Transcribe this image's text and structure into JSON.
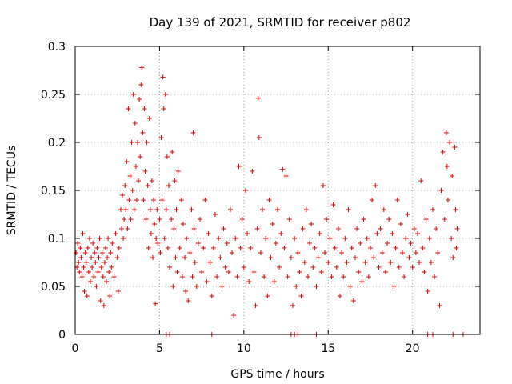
{
  "chart_data": {
    "type": "scatter",
    "title": "Day 139 of 2021, SRMTID for receiver p802",
    "xlabel": "GPS time / hours",
    "ylabel": "SRMTID / TECUs",
    "xlim": [
      0,
      24
    ],
    "ylim": [
      0,
      0.3
    ],
    "x_ticks": [
      0,
      5,
      10,
      15,
      20
    ],
    "x_tick_labels": [
      "0",
      "5",
      "10",
      "15",
      "20"
    ],
    "y_ticks": [
      0,
      0.05,
      0.1,
      0.15,
      0.2,
      0.25,
      0.3
    ],
    "y_tick_labels": [
      "0",
      "0.05",
      "0.1",
      "0.15",
      "0.2",
      "0.25",
      "0.3"
    ],
    "grid": true,
    "marker": "+",
    "color": "#e00000",
    "series": [
      {
        "name": "SRMTID",
        "points": [
          [
            0.05,
            0.085
          ],
          [
            0.1,
            0.07
          ],
          [
            0.15,
            0.095
          ],
          [
            0.2,
            0.075
          ],
          [
            0.25,
            0.065
          ],
          [
            0.3,
            0.09
          ],
          [
            0.35,
            0.08
          ],
          [
            0.4,
            0.06
          ],
          [
            0.45,
            0.105
          ],
          [
            0.5,
            0.07
          ],
          [
            0.55,
            0.045
          ],
          [
            0.6,
            0.085
          ],
          [
            0.65,
            0.075
          ],
          [
            0.7,
            0.04
          ],
          [
            0.75,
            0.09
          ],
          [
            0.8,
            0.065
          ],
          [
            0.85,
            0.1
          ],
          [
            0.9,
            0.055
          ],
          [
            0.95,
            0.08
          ],
          [
            1.0,
            0.07
          ],
          [
            1.05,
            0.095
          ],
          [
            1.1,
            0.06
          ],
          [
            1.15,
            0.085
          ],
          [
            1.2,
            0.075
          ],
          [
            1.25,
            0.05
          ],
          [
            1.3,
            0.09
          ],
          [
            1.35,
            0.065
          ],
          [
            1.4,
            0.08
          ],
          [
            1.45,
            0.1
          ],
          [
            1.5,
            0.035
          ],
          [
            1.55,
            0.07
          ],
          [
            1.6,
            0.085
          ],
          [
            1.65,
            0.06
          ],
          [
            1.7,
            0.03
          ],
          [
            1.75,
            0.075
          ],
          [
            1.8,
            0.09
          ],
          [
            1.85,
            0.055
          ],
          [
            1.9,
            0.08
          ],
          [
            1.95,
            0.1
          ],
          [
            2.0,
            0.065
          ],
          [
            2.05,
            0.04
          ],
          [
            2.1,
            0.085
          ],
          [
            2.15,
            0.07
          ],
          [
            2.2,
            0.095
          ],
          [
            2.3,
            0.06
          ],
          [
            2.4,
            0.105
          ],
          [
            2.5,
            0.08
          ],
          [
            2.55,
            0.045
          ],
          [
            2.6,
            0.09
          ],
          [
            2.7,
            0.13
          ],
          [
            2.75,
            0.11
          ],
          [
            2.8,
            0.145
          ],
          [
            2.85,
            0.1
          ],
          [
            2.9,
            0.12
          ],
          [
            2.95,
            0.155
          ],
          [
            3.0,
            0.13
          ],
          [
            3.05,
            0.18
          ],
          [
            3.1,
            0.11
          ],
          [
            3.15,
            0.235
          ],
          [
            3.2,
            0.14
          ],
          [
            3.25,
            0.165
          ],
          [
            3.3,
            0.12
          ],
          [
            3.35,
            0.2
          ],
          [
            3.4,
            0.15
          ],
          [
            3.45,
            0.25
          ],
          [
            3.5,
            0.13
          ],
          [
            3.55,
            0.22
          ],
          [
            3.6,
            0.175
          ],
          [
            3.65,
            0.14
          ],
          [
            3.7,
            0.2
          ],
          [
            3.75,
            0.16
          ],
          [
            3.8,
            0.245
          ],
          [
            3.85,
            0.185
          ],
          [
            3.9,
            0.26
          ],
          [
            3.95,
            0.278
          ],
          [
            4.0,
            0.21
          ],
          [
            4.05,
            0.14
          ],
          [
            4.1,
            0.235
          ],
          [
            4.15,
            0.17
          ],
          [
            4.2,
            0.12
          ],
          [
            4.25,
            0.2
          ],
          [
            4.3,
            0.155
          ],
          [
            4.35,
            0.09
          ],
          [
            4.4,
            0.225
          ],
          [
            4.45,
            0.13
          ],
          [
            4.5,
            0.105
          ],
          [
            4.55,
            0.16
          ],
          [
            4.6,
            0.08
          ],
          [
            4.65,
            0.14
          ],
          [
            4.7,
            0.115
          ],
          [
            4.75,
            0.032
          ],
          [
            4.8,
            0.1
          ],
          [
            4.85,
            0.13
          ],
          [
            4.9,
            0.095
          ],
          [
            5.0,
            0.12
          ],
          [
            5.05,
            0.085
          ],
          [
            5.1,
            0.205
          ],
          [
            5.15,
            0.14
          ],
          [
            5.2,
            0.268
          ],
          [
            5.25,
            0.235
          ],
          [
            5.3,
            0.1
          ],
          [
            5.35,
            0.25
          ],
          [
            5.4,
            0.13
          ],
          [
            5.45,
            0.185
          ],
          [
            5.5,
            0.09
          ],
          [
            5.55,
            0.155
          ],
          [
            5.6,
            0.07
          ],
          [
            5.7,
            0.12
          ],
          [
            5.75,
            0.19
          ],
          [
            5.8,
            0.05
          ],
          [
            5.85,
            0.11
          ],
          [
            5.9,
            0.16
          ],
          [
            5.95,
            0.08
          ],
          [
            6.0,
            0.13
          ],
          [
            6.05,
            0.065
          ],
          [
            6.1,
            0.17
          ],
          [
            6.2,
            0.09
          ],
          [
            6.3,
            0.14
          ],
          [
            6.35,
            0.06
          ],
          [
            6.4,
            0.115
          ],
          [
            6.5,
            0.08
          ],
          [
            6.55,
            0.045
          ],
          [
            6.6,
            0.1
          ],
          [
            6.7,
            0.035
          ],
          [
            6.8,
            0.085
          ],
          [
            6.9,
            0.13
          ],
          [
            6.95,
            0.06
          ],
          [
            7.0,
            0.21
          ],
          [
            7.05,
            0.11
          ],
          [
            7.1,
            0.075
          ],
          [
            7.2,
            0.05
          ],
          [
            7.3,
            0.095
          ],
          [
            7.4,
            0.12
          ],
          [
            7.5,
            0.065
          ],
          [
            7.6,
            0.09
          ],
          [
            7.7,
            0.14
          ],
          [
            7.8,
            0.055
          ],
          [
            7.9,
            0.105
          ],
          [
            8.0,
            0.075
          ],
          [
            8.1,
            0.04
          ],
          [
            8.2,
            0.09
          ],
          [
            8.3,
            0.125
          ],
          [
            8.4,
            0.06
          ],
          [
            8.5,
            0.1
          ],
          [
            8.6,
            0.08
          ],
          [
            8.7,
            0.05
          ],
          [
            8.8,
            0.11
          ],
          [
            8.9,
            0.07
          ],
          [
            9.0,
            0.095
          ],
          [
            9.1,
            0.065
          ],
          [
            9.2,
            0.13
          ],
          [
            9.3,
            0.085
          ],
          [
            9.4,
            0.02
          ],
          [
            9.5,
            0.1
          ],
          [
            9.6,
            0.06
          ],
          [
            9.7,
            0.175
          ],
          [
            9.8,
            0.09
          ],
          [
            9.9,
            0.12
          ],
          [
            10.0,
            0.07
          ],
          [
            10.1,
            0.15
          ],
          [
            10.2,
            0.105
          ],
          [
            10.3,
            0.055
          ],
          [
            10.4,
            0.09
          ],
          [
            10.5,
            0.17
          ],
          [
            10.6,
            0.065
          ],
          [
            10.7,
            0.03
          ],
          [
            10.8,
            0.11
          ],
          [
            10.85,
            0.246
          ],
          [
            10.9,
            0.205
          ],
          [
            11.0,
            0.085
          ],
          [
            11.1,
            0.13
          ],
          [
            11.2,
            0.06
          ],
          [
            11.3,
            0.1
          ],
          [
            11.4,
            0.04
          ],
          [
            11.5,
            0.14
          ],
          [
            11.6,
            0.08
          ],
          [
            11.7,
            0.115
          ],
          [
            11.8,
            0.055
          ],
          [
            11.9,
            0.095
          ],
          [
            12.0,
            0.13
          ],
          [
            12.1,
            0.07
          ],
          [
            12.2,
            0.105
          ],
          [
            12.3,
            0.172
          ],
          [
            12.4,
            0.09
          ],
          [
            12.5,
            0.165
          ],
          [
            12.6,
            0.06
          ],
          [
            12.7,
            0.12
          ],
          [
            12.8,
            0.08
          ],
          [
            12.9,
            0.03
          ],
          [
            13.0,
            0.1
          ],
          [
            13.1,
            0.05
          ],
          [
            13.2,
            0.085
          ],
          [
            13.3,
            0.065
          ],
          [
            13.4,
            0.04
          ],
          [
            13.5,
            0.11
          ],
          [
            13.6,
            0.075
          ],
          [
            13.7,
            0.13
          ],
          [
            13.8,
            0.06
          ],
          [
            13.9,
            0.095
          ],
          [
            14.0,
            0.115
          ],
          [
            14.1,
            0.07
          ],
          [
            14.2,
            0.09
          ],
          [
            14.3,
            0.05
          ],
          [
            14.4,
            0.08
          ],
          [
            14.5,
            0.105
          ],
          [
            14.6,
            0.065
          ],
          [
            14.7,
            0.155
          ],
          [
            14.8,
            0.085
          ],
          [
            14.9,
            0.12
          ],
          [
            15.0,
            0.075
          ],
          [
            15.1,
            0.1
          ],
          [
            15.2,
            0.06
          ],
          [
            15.3,
            0.135
          ],
          [
            15.4,
            0.09
          ],
          [
            15.5,
            0.07
          ],
          [
            15.6,
            0.11
          ],
          [
            15.7,
            0.04
          ],
          [
            15.8,
            0.085
          ],
          [
            15.9,
            0.06
          ],
          [
            16.0,
            0.1
          ],
          [
            16.1,
            0.075
          ],
          [
            16.2,
            0.13
          ],
          [
            16.3,
            0.05
          ],
          [
            16.4,
            0.09
          ],
          [
            16.5,
            0.035
          ],
          [
            16.6,
            0.08
          ],
          [
            16.7,
            0.11
          ],
          [
            16.8,
            0.065
          ],
          [
            16.9,
            0.095
          ],
          [
            17.0,
            0.055
          ],
          [
            17.1,
            0.12
          ],
          [
            17.2,
            0.075
          ],
          [
            17.3,
            0.1
          ],
          [
            17.4,
            0.06
          ],
          [
            17.5,
            0.09
          ],
          [
            17.6,
            0.14
          ],
          [
            17.7,
            0.08
          ],
          [
            17.8,
            0.155
          ],
          [
            17.9,
            0.105
          ],
          [
            18.0,
            0.07
          ],
          [
            18.1,
            0.11
          ],
          [
            18.2,
            0.085
          ],
          [
            18.3,
            0.13
          ],
          [
            18.4,
            0.065
          ],
          [
            18.5,
            0.095
          ],
          [
            18.6,
            0.12
          ],
          [
            18.7,
            0.075
          ],
          [
            18.8,
            0.105
          ],
          [
            18.9,
            0.05
          ],
          [
            19.0,
            0.09
          ],
          [
            19.1,
            0.14
          ],
          [
            19.2,
            0.07
          ],
          [
            19.3,
            0.115
          ],
          [
            19.4,
            0.085
          ],
          [
            19.5,
            0.06
          ],
          [
            19.6,
            0.1
          ],
          [
            19.7,
            0.125
          ],
          [
            19.8,
            0.08
          ],
          [
            19.9,
            0.095
          ],
          [
            20.0,
            0.07
          ],
          [
            20.1,
            0.11
          ],
          [
            20.2,
            0.085
          ],
          [
            20.3,
            0.105
          ],
          [
            20.4,
            0.075
          ],
          [
            20.5,
            0.16
          ],
          [
            20.6,
            0.09
          ],
          [
            20.7,
            0.065
          ],
          [
            20.8,
            0.12
          ],
          [
            20.9,
            0.045
          ],
          [
            21.0,
            0.1
          ],
          [
            21.1,
            0.075
          ],
          [
            21.2,
            0.13
          ],
          [
            21.3,
            0.06
          ],
          [
            21.4,
            0.11
          ],
          [
            21.5,
            0.085
          ],
          [
            21.6,
            0.03
          ],
          [
            21.7,
            0.15
          ],
          [
            21.8,
            0.19
          ],
          [
            21.9,
            0.12
          ],
          [
            22.0,
            0.21
          ],
          [
            22.05,
            0.175
          ],
          [
            22.1,
            0.14
          ],
          [
            22.2,
            0.2
          ],
          [
            22.3,
            0.1
          ],
          [
            22.35,
            0.165
          ],
          [
            22.4,
            0.08
          ],
          [
            22.5,
            0.195
          ],
          [
            22.55,
            0.13
          ],
          [
            22.6,
            0.09
          ],
          [
            22.65,
            0.11
          ]
        ]
      }
    ],
    "zero_points_x": [
      5.4,
      5.6,
      8.1,
      12.8,
      13.0,
      13.2,
      14.3,
      20.9,
      21.2,
      22.4,
      23.0
    ]
  }
}
